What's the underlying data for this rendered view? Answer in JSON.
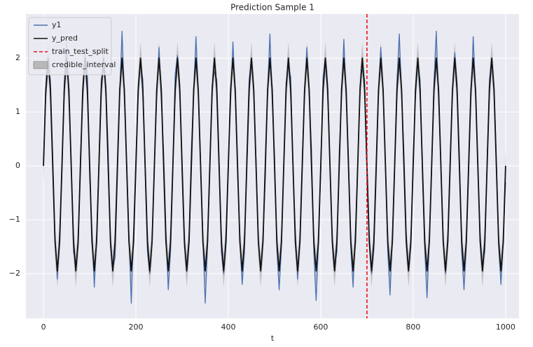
{
  "chart_data": {
    "type": "line",
    "title": "Prediction Sample 1",
    "xlabel": "t",
    "x": [
      0,
      5,
      10,
      15,
      20,
      25,
      30,
      35,
      40,
      45,
      50,
      55,
      60,
      65,
      70,
      75,
      80,
      85,
      90,
      95,
      100,
      105,
      110,
      115,
      120,
      125,
      130,
      135,
      140,
      145,
      150,
      155,
      160,
      165,
      170,
      175,
      180,
      185,
      190,
      195,
      200,
      205,
      210,
      215,
      220,
      225,
      230,
      235,
      240,
      245,
      250,
      255,
      260,
      265,
      270,
      275,
      280,
      285,
      290,
      295,
      300,
      305,
      310,
      315,
      320,
      325,
      330,
      335,
      340,
      345,
      350,
      355,
      360,
      365,
      370,
      375,
      380,
      385,
      390,
      395,
      400,
      405,
      410,
      415,
      420,
      425,
      430,
      435,
      440,
      445,
      450,
      455,
      460,
      465,
      470,
      475,
      480,
      485,
      490,
      495,
      500,
      505,
      510,
      515,
      520,
      525,
      530,
      535,
      540,
      545,
      550,
      555,
      560,
      565,
      570,
      575,
      580,
      585,
      590,
      595,
      600,
      605,
      610,
      615,
      620,
      625,
      630,
      635,
      640,
      645,
      650,
      655,
      660,
      665,
      670,
      675,
      680,
      685,
      690,
      695,
      700,
      705,
      710,
      715,
      720,
      725,
      730,
      735,
      740,
      745,
      750,
      755,
      760,
      765,
      770,
      775,
      780,
      785,
      790,
      795,
      800,
      805,
      810,
      815,
      820,
      825,
      830,
      835,
      840,
      845,
      850,
      855,
      860,
      865,
      870,
      875,
      880,
      885,
      890,
      895,
      900,
      905,
      910,
      915,
      920,
      925,
      930,
      935,
      940,
      945,
      950,
      955,
      960,
      965,
      970,
      975,
      980,
      985,
      990,
      995,
      1000
    ],
    "series": [
      {
        "name": "y1",
        "color": "#4c72b0",
        "values": [
          0.05,
          1.3,
          1.85,
          1.6,
          0.2,
          -1.3,
          -2.1,
          -1.2,
          -0.15,
          1.55,
          2.3,
          1.2,
          0.1,
          -1.6,
          -1.8,
          -1.5,
          0.2,
          1.2,
          2.1,
          1.7,
          -0.2,
          -1.2,
          -2.25,
          -1.3,
          0.1,
          1.6,
          1.8,
          1.5,
          0.3,
          -1.5,
          -1.9,
          -1.7,
          -0.2,
          1.3,
          2.5,
          1.3,
          0.1,
          -1.3,
          -2.55,
          -1.2,
          0.15,
          1.5,
          1.9,
          1.6,
          -0.1,
          -1.6,
          -2.0,
          -1.4,
          0.0,
          1.25,
          2.2,
          1.2,
          0.25,
          -1.2,
          -2.3,
          -1.6,
          -0.1,
          1.7,
          2.05,
          1.5,
          -0.2,
          -1.5,
          -1.85,
          -1.3,
          0.3,
          1.35,
          2.4,
          1.35,
          0.05,
          -1.35,
          -2.55,
          -1.5,
          -0.05,
          1.5,
          1.75,
          1.6,
          0.15,
          -1.6,
          -2.0,
          -1.2,
          0.1,
          1.2,
          2.3,
          1.3,
          -0.15,
          -1.3,
          -2.2,
          -1.6,
          0.2,
          1.6,
          2.0,
          1.45,
          0.1,
          -1.45,
          -1.9,
          -1.35,
          -0.25,
          1.4,
          2.45,
          1.2,
          0.2,
          -1.55,
          -2.3,
          -1.5,
          0.05,
          1.55,
          1.85,
          1.65,
          -0.1,
          -1.2,
          -2.1,
          -1.3,
          0.15,
          1.3,
          2.2,
          1.35,
          0.3,
          -1.6,
          -2.5,
          -1.45,
          -0.1,
          1.65,
          2.0,
          1.5,
          -0.05,
          -1.35,
          -1.85,
          -1.6,
          0.25,
          1.25,
          2.35,
          1.25,
          0.15,
          -1.5,
          -2.25,
          -1.2,
          0.0,
          1.5,
          1.8,
          1.6,
          -0.2,
          -1.3,
          -2.0,
          -1.55,
          -0.2,
          1.35,
          2.2,
          1.4,
          0.1,
          -1.6,
          -2.4,
          -1.3,
          0.1,
          1.6,
          2.45,
          1.3,
          0.25,
          -1.25,
          -1.9,
          -1.5,
          0.2,
          1.3,
          1.9,
          1.6,
          -0.15,
          -1.55,
          -2.45,
          -1.4,
          -0.05,
          1.55,
          2.5,
          1.25,
          0.05,
          -1.4,
          -2.0,
          -1.25,
          0.15,
          1.4,
          2.1,
          1.55,
          0.2,
          -1.6,
          -2.3,
          -1.5,
          -0.15,
          1.25,
          2.4,
          1.35,
          -0.1,
          -1.3,
          -1.85,
          -1.6,
          0.1,
          1.6,
          2.0,
          1.5,
          0.15,
          -1.5,
          -2.2,
          -1.35,
          -0.3
        ]
      },
      {
        "name": "y_pred",
        "color": "#111111",
        "values": [
          0,
          1.41,
          2,
          1.41,
          0,
          -1.41,
          -1.95,
          -1.41,
          0,
          1.41,
          2,
          1.41,
          0,
          -1.41,
          -1.95,
          -1.41,
          0,
          1.41,
          2,
          1.41,
          0,
          -1.41,
          -1.95,
          -1.41,
          0,
          1.41,
          2,
          1.41,
          0,
          -1.41,
          -1.95,
          -1.41,
          0,
          1.41,
          2,
          1.41,
          0,
          -1.41,
          -1.95,
          -1.41,
          0,
          1.41,
          2,
          1.41,
          0,
          -1.41,
          -1.95,
          -1.41,
          0,
          1.41,
          2,
          1.41,
          0,
          -1.41,
          -1.95,
          -1.41,
          0,
          1.41,
          2,
          1.41,
          0,
          -1.41,
          -1.95,
          -1.41,
          0,
          1.41,
          2,
          1.41,
          0,
          -1.41,
          -1.95,
          -1.41,
          0,
          1.41,
          2,
          1.41,
          0,
          -1.41,
          -1.95,
          -1.41,
          0,
          1.41,
          2,
          1.41,
          0,
          -1.41,
          -1.95,
          -1.41,
          0,
          1.41,
          2,
          1.41,
          0,
          -1.41,
          -1.95,
          -1.41,
          0,
          1.41,
          2,
          1.41,
          0,
          -1.41,
          -1.95,
          -1.41,
          0,
          1.41,
          2,
          1.41,
          0,
          -1.41,
          -1.95,
          -1.41,
          0,
          1.41,
          2,
          1.41,
          0,
          -1.41,
          -1.95,
          -1.41,
          0,
          1.41,
          2,
          1.41,
          0,
          -1.41,
          -1.95,
          -1.41,
          0,
          1.41,
          2,
          1.41,
          0,
          -1.41,
          -1.95,
          -1.41,
          0,
          1.41,
          2,
          1.41,
          0,
          -1.41,
          -1.95,
          -1.41,
          0,
          1.41,
          2,
          1.41,
          0,
          -1.41,
          -1.95,
          -1.41,
          0,
          1.41,
          2,
          1.41,
          0,
          -1.41,
          -1.95,
          -1.41,
          0,
          1.41,
          2,
          1.41,
          0,
          -1.41,
          -1.95,
          -1.41,
          0,
          1.41,
          2,
          1.41,
          0,
          -1.41,
          -1.95,
          -1.41,
          0,
          1.41,
          2,
          1.41,
          0,
          -1.41,
          -1.95,
          -1.41,
          0,
          1.41,
          2,
          1.41,
          0,
          -1.41,
          -1.95,
          -1.41,
          0,
          1.41,
          2,
          1.41,
          0,
          -1.41,
          -1.95,
          -1.41,
          0
        ]
      }
    ],
    "interval": {
      "name": "credible_interval",
      "color": "#b8b8b8",
      "lower": [
        -0.3,
        1.11,
        1.7,
        1.11,
        -0.3,
        -1.71,
        -2.25,
        -1.71,
        -0.3,
        1.11,
        1.7,
        1.11,
        -0.3,
        -1.71,
        -2.25,
        -1.71,
        -0.3,
        1.11,
        1.7,
        1.11,
        -0.3,
        -1.71,
        -2.25,
        -1.71,
        -0.3,
        1.11,
        1.7,
        1.11,
        -0.3,
        -1.71,
        -2.25,
        -1.71,
        -0.3,
        1.11,
        1.7,
        1.11,
        -0.3,
        -1.71,
        -2.25,
        -1.71,
        -0.3,
        1.11,
        1.7,
        1.11,
        -0.3,
        -1.71,
        -2.25,
        -1.71,
        -0.3,
        1.11,
        1.7,
        1.11,
        -0.3,
        -1.71,
        -2.25,
        -1.71,
        -0.3,
        1.11,
        1.7,
        1.11,
        -0.3,
        -1.71,
        -2.25,
        -1.71,
        -0.3,
        1.11,
        1.7,
        1.11,
        -0.3,
        -1.71,
        -2.25,
        -1.71,
        -0.3,
        1.11,
        1.7,
        1.11,
        -0.3,
        -1.71,
        -2.25,
        -1.71,
        -0.3,
        1.11,
        1.7,
        1.11,
        -0.3,
        -1.71,
        -2.25,
        -1.71,
        -0.3,
        1.11,
        1.7,
        1.11,
        -0.3,
        -1.71,
        -2.25,
        -1.71,
        -0.3,
        1.11,
        1.7,
        1.11,
        -0.3,
        -1.71,
        -2.25,
        -1.71,
        -0.3,
        1.11,
        1.7,
        1.11,
        -0.3,
        -1.71,
        -2.25,
        -1.71,
        -0.3,
        1.11,
        1.7,
        1.11,
        -0.3,
        -1.71,
        -2.25,
        -1.71,
        -0.3,
        1.11,
        1.7,
        1.11,
        -0.3,
        -1.71,
        -2.25,
        -1.71,
        -0.3,
        1.11,
        1.7,
        1.11,
        -0.3,
        -1.71,
        -2.25,
        -1.71,
        -0.3,
        1.11,
        1.7,
        1.11,
        -0.3,
        -1.71,
        -2.25,
        -1.71,
        -0.3,
        1.11,
        1.7,
        1.11,
        -0.3,
        -1.71,
        -2.25,
        -1.71,
        -0.3,
        1.11,
        1.7,
        1.11,
        -0.3,
        -1.71,
        -2.25,
        -1.71,
        -0.3,
        1.11,
        1.7,
        1.11,
        -0.3,
        -1.71,
        -2.25,
        -1.71,
        -0.3,
        1.11,
        1.7,
        1.11,
        -0.3,
        -1.71,
        -2.25,
        -1.71,
        -0.3,
        1.11,
        1.7,
        1.11,
        -0.3,
        -1.71,
        -2.25,
        -1.71,
        -0.3,
        1.11,
        1.7,
        1.11,
        -0.3,
        -1.71,
        -2.25,
        -1.71,
        -0.3,
        1.11,
        1.7,
        1.11,
        -0.3,
        -1.71,
        -2.25,
        -1.71,
        -0.3
      ],
      "upper": [
        0.3,
        1.71,
        2.3,
        1.71,
        0.3,
        -1.11,
        -1.65,
        -1.11,
        0.3,
        1.71,
        2.3,
        1.71,
        0.3,
        -1.11,
        -1.65,
        -1.11,
        0.3,
        1.71,
        2.3,
        1.71,
        0.3,
        -1.11,
        -1.65,
        -1.11,
        0.3,
        1.71,
        2.3,
        1.71,
        0.3,
        -1.11,
        -1.65,
        -1.11,
        0.3,
        1.71,
        2.3,
        1.71,
        0.3,
        -1.11,
        -1.65,
        -1.11,
        0.3,
        1.71,
        2.3,
        1.71,
        0.3,
        -1.11,
        -1.65,
        -1.11,
        0.3,
        1.71,
        2.3,
        1.71,
        0.3,
        -1.11,
        -1.65,
        -1.11,
        0.3,
        1.71,
        2.3,
        1.71,
        0.3,
        -1.11,
        -1.65,
        -1.11,
        0.3,
        1.71,
        2.3,
        1.71,
        0.3,
        -1.11,
        -1.65,
        -1.11,
        0.3,
        1.71,
        2.3,
        1.71,
        0.3,
        -1.11,
        -1.65,
        -1.11,
        0.3,
        1.71,
        2.3,
        1.71,
        0.3,
        -1.11,
        -1.65,
        -1.11,
        0.3,
        1.71,
        2.3,
        1.71,
        0.3,
        -1.11,
        -1.65,
        -1.11,
        0.3,
        1.71,
        2.3,
        1.71,
        0.3,
        -1.11,
        -1.65,
        -1.11,
        0.3,
        1.71,
        2.3,
        1.71,
        0.3,
        -1.11,
        -1.65,
        -1.11,
        0.3,
        1.71,
        2.3,
        1.71,
        0.3,
        -1.11,
        -1.65,
        -1.11,
        0.3,
        1.71,
        2.3,
        1.71,
        0.3,
        -1.11,
        -1.65,
        -1.11,
        0.3,
        1.71,
        2.3,
        1.71,
        0.3,
        -1.11,
        -1.65,
        -1.11,
        0.3,
        1.71,
        2.3,
        1.71,
        0.3,
        -1.11,
        -1.65,
        -1.11,
        0.3,
        1.71,
        2.3,
        1.71,
        0.3,
        -1.11,
        -1.65,
        -1.11,
        0.3,
        1.71,
        2.3,
        1.71,
        0.3,
        -1.11,
        -1.65,
        -1.11,
        0.3,
        1.71,
        2.3,
        1.71,
        0.3,
        -1.11,
        -1.65,
        -1.11,
        0.3,
        1.71,
        2.3,
        1.71,
        0.3,
        -1.11,
        -1.65,
        -1.11,
        0.3,
        1.71,
        2.3,
        1.71,
        0.3,
        -1.11,
        -1.65,
        -1.11,
        0.3,
        1.71,
        2.3,
        1.71,
        0.3,
        -1.11,
        -1.65,
        -1.11,
        0.3,
        1.71,
        2.3,
        1.71,
        0.3,
        -1.11,
        -1.65,
        -1.11,
        0.3
      ]
    },
    "vline": {
      "name": "train_test_split",
      "x": 700,
      "color": "#e8141c"
    },
    "xlim": [
      -38,
      1029
    ],
    "ylim": [
      -2.83,
      2.82
    ],
    "xticks": [
      0,
      200,
      400,
      600,
      800,
      1000
    ],
    "yticks": [
      {
        "value": -2,
        "label": "−2"
      },
      {
        "value": -1,
        "label": "−1"
      },
      0,
      1,
      2
    ],
    "grid": true,
    "legend": "upper left"
  }
}
